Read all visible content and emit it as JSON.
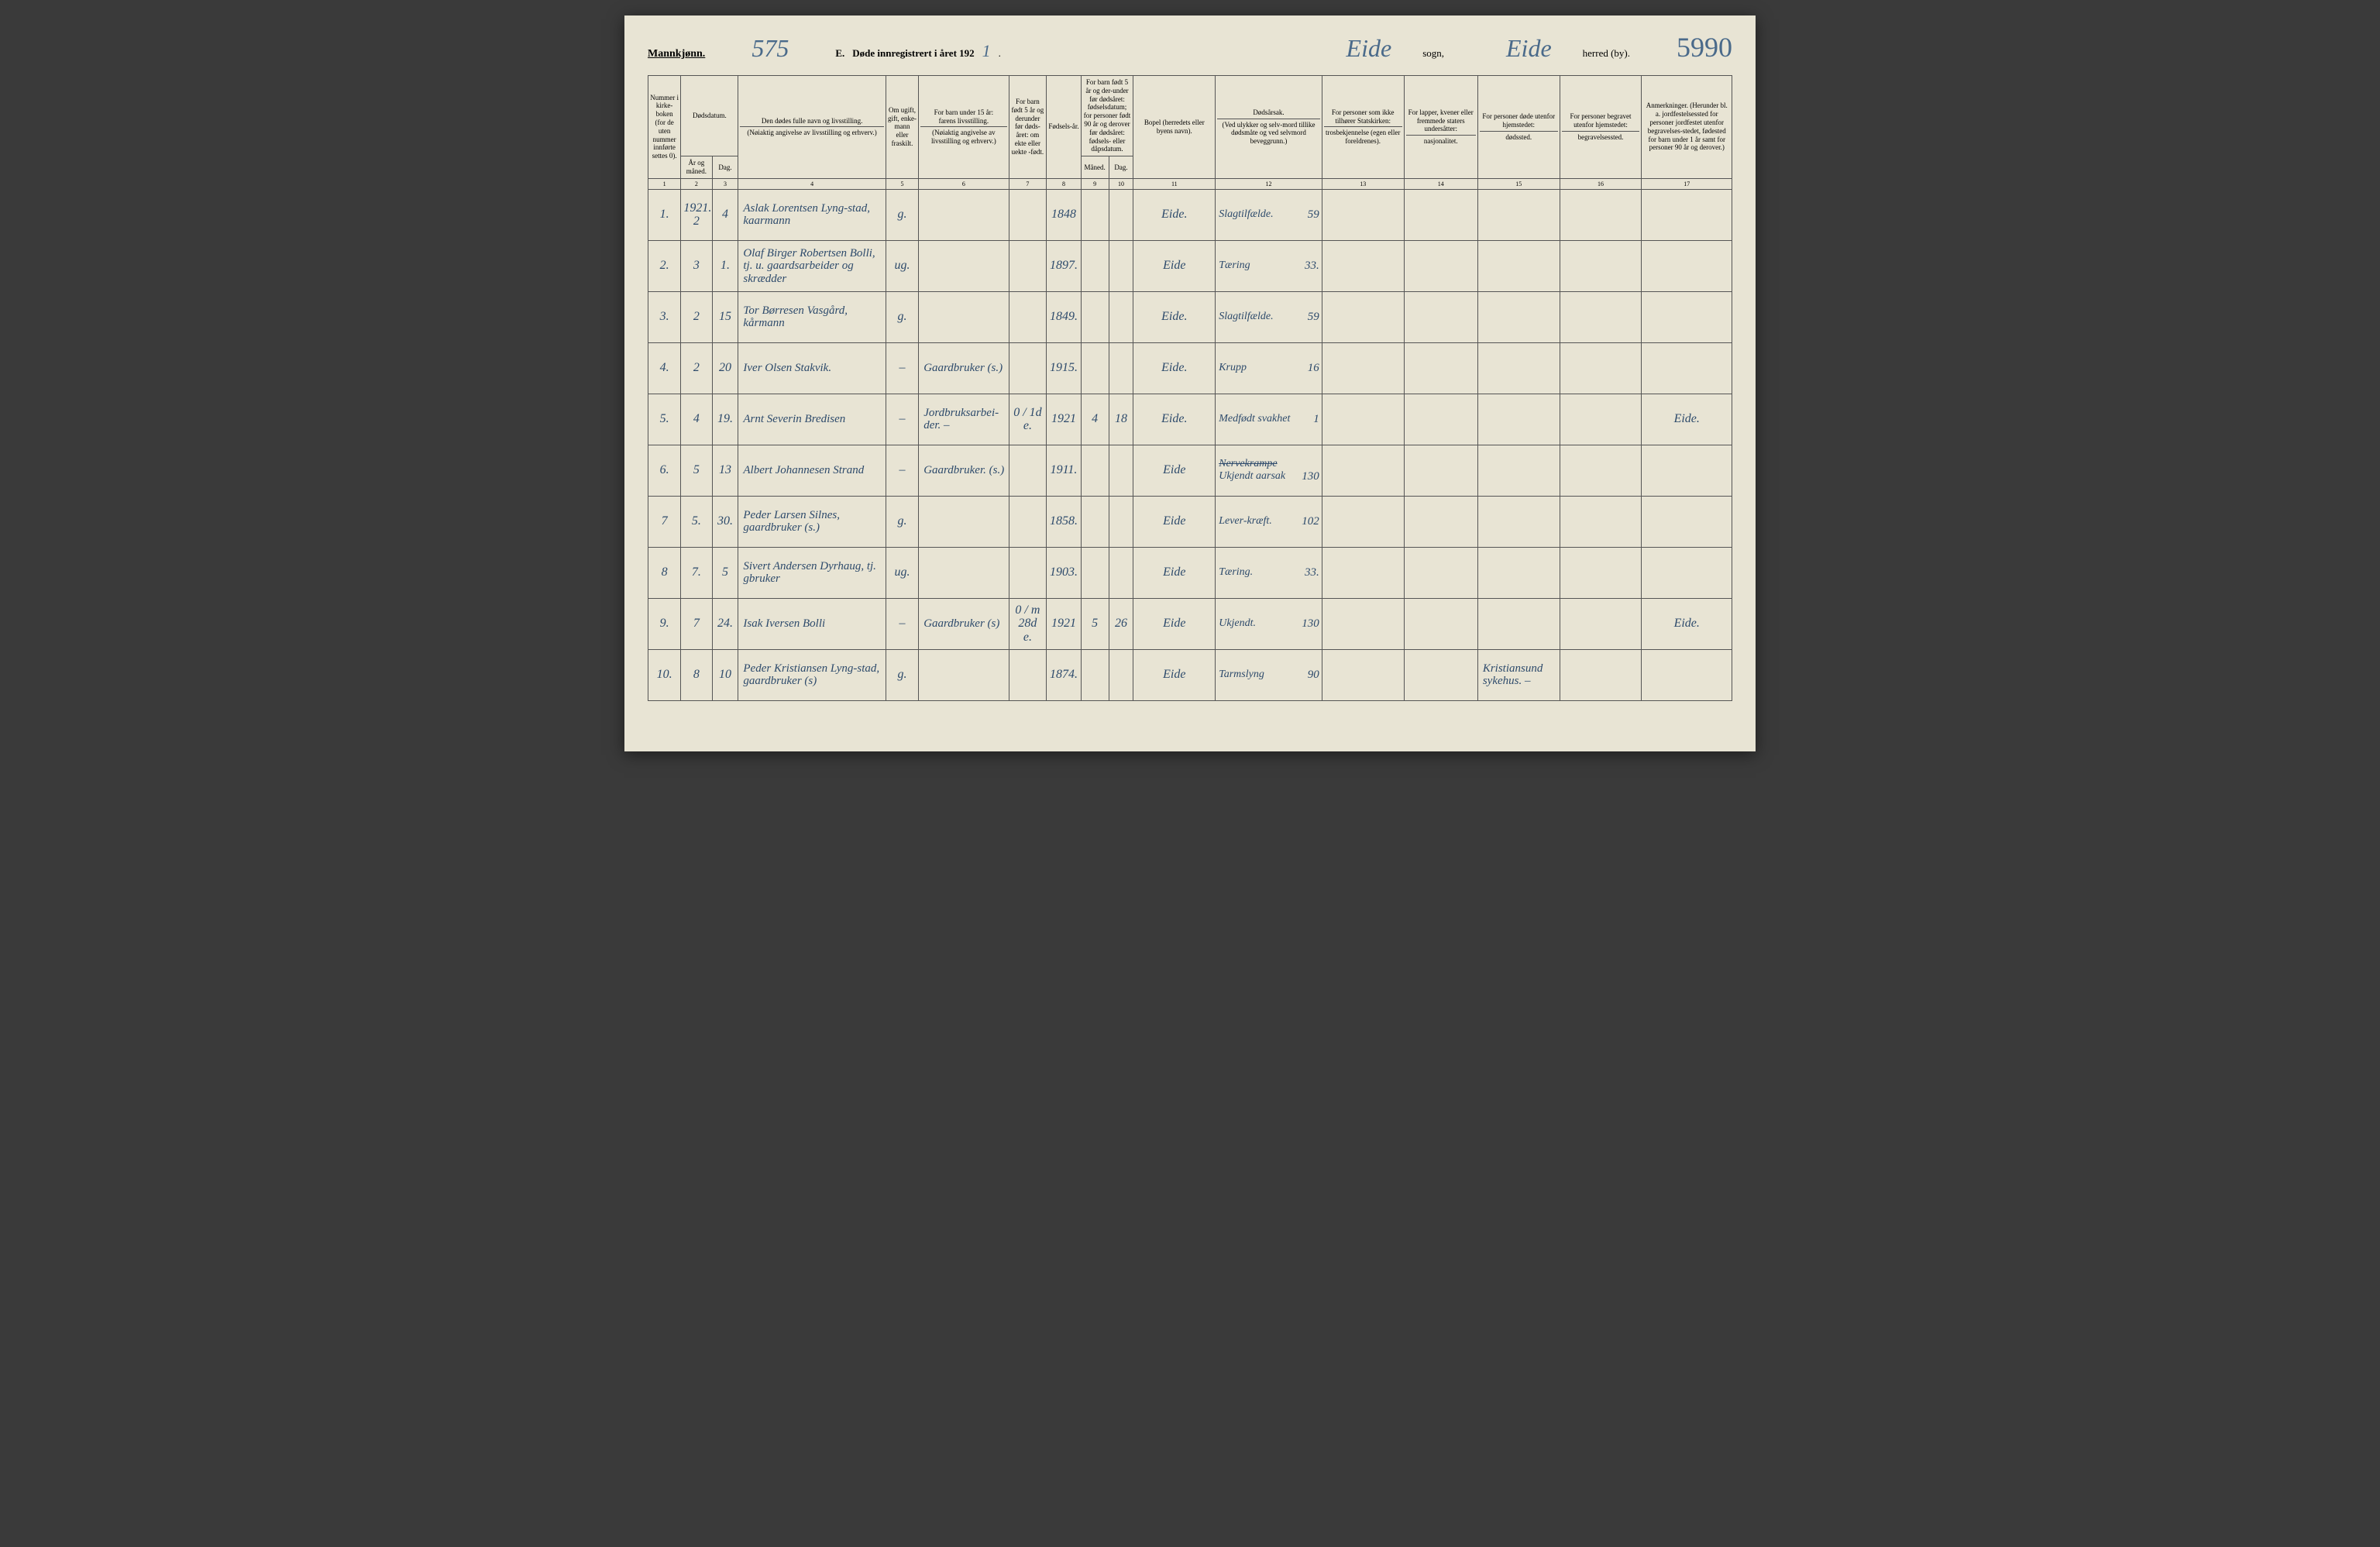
{
  "header": {
    "mannkjonn": "Mannkjønn.",
    "page_hand": "575",
    "section_letter": "E.",
    "title_printed": "Døde innregistrert i året 192",
    "year_hand": "1",
    "period": ".",
    "sogn_hand": "Eide",
    "sogn_label": "sogn,",
    "herred_hand": "Eide",
    "herred_label": "herred (by).",
    "right_hand": "5990"
  },
  "columns": {
    "c1": "Nummer i kirke-boken (for de uten nummer innførte settes 0).",
    "c2_3_top": "Dødsdatum.",
    "c2": "År og måned.",
    "c3": "Dag.",
    "c4_top": "Den dødes fulle navn og livsstilling.",
    "c4_sub": "(Nøiaktig angivelse av livsstilling og erhverv.)",
    "c5": "Om ugift, gift, enke-mann eller fraskilt.",
    "c6_top": "For barn under 15 år:",
    "c6_mid": "farens livsstilling.",
    "c6_sub": "(Nøiaktig angivelse av livsstilling og erhverv.)",
    "c7": "For barn født 5 år og derunder før døds-året: om ekte eller uekte -født.",
    "c8": "Fødsels-år.",
    "c9_10_top": "For barn født 5 år og der-under før dødsåret: fødselsdatum; for personer født 90 år og derover før dødsåret: fødsels- eller dåpsdatum.",
    "c9": "Måned.",
    "c10": "Dag.",
    "c11": "Bopel (herredets eller byens navn).",
    "c12_top": "Dødsårsak.",
    "c12_sub": "(Ved ulykker og selv-mord tillike dødsmåte og ved selvmord beveggrunn.)",
    "c13_top": "For personer som ikke tilhører Statskirken:",
    "c13_sub": "trosbekjennelse (egen eller foreldrenes).",
    "c14_top": "For lapper, kvener eller fremmede staters undersåtter:",
    "c14_sub": "nasjonalitet.",
    "c15_top": "For personer døde utenfor hjemstedet:",
    "c15_sub": "dødssted.",
    "c16_top": "For personer begravet utenfor hjemstedet:",
    "c16_sub": "begravelsessted.",
    "c17": "Anmerkninger. (Herunder bl. a. jordfestelsessted for personer jordfestet utenfor begravelses-stedet, fødested for barn under 1 år samt for personer 90 år og derover.)"
  },
  "colnums": [
    "1",
    "2",
    "3",
    "4",
    "5",
    "6",
    "7",
    "8",
    "9",
    "10",
    "11",
    "12",
    "13",
    "14",
    "15",
    "16",
    "17"
  ],
  "year_above": "1921.",
  "rows": [
    {
      "n": "1.",
      "mon": "2",
      "day": "4",
      "name": "Aslak Lorentsen Lyng-stad, kaarmann",
      "stat": "g.",
      "fath": "",
      "ekte": "",
      "birth": "1848",
      "bm": "",
      "bd": "",
      "bopel": "Eide.",
      "cause": "Slagtilfælde.",
      "cnum": "59",
      "c13": "",
      "c14": "",
      "c15": "",
      "c16": "",
      "c17": ""
    },
    {
      "n": "2.",
      "mon": "3",
      "day": "1.",
      "name": "Olaf Birger Robertsen Bolli, tj. u. gaardsarbeider og skrædder",
      "stat": "ug.",
      "fath": "",
      "ekte": "",
      "birth": "1897.",
      "bm": "",
      "bd": "",
      "bopel": "Eide",
      "cause": "Tæring",
      "cnum": "33.",
      "c13": "",
      "c14": "",
      "c15": "",
      "c16": "",
      "c17": ""
    },
    {
      "n": "3.",
      "mon": "2",
      "day": "15",
      "name": "Tor Børresen Vasgård, kårmann",
      "stat": "g.",
      "fath": "",
      "ekte": "",
      "birth": "1849.",
      "bm": "",
      "bd": "",
      "bopel": "Eide.",
      "cause": "Slagtilfælde.",
      "cnum": "59",
      "c13": "",
      "c14": "",
      "c15": "",
      "c16": "",
      "c17": ""
    },
    {
      "n": "4.",
      "mon": "2",
      "day": "20",
      "name": "Iver Olsen Stakvik.",
      "stat": "–",
      "fath": "Gaardbruker (s.)",
      "ekte": "",
      "birth": "1915.",
      "bm": "",
      "bd": "",
      "bopel": "Eide.",
      "cause": "Krupp",
      "cnum": "16",
      "c13": "",
      "c14": "",
      "c15": "",
      "c16": "",
      "c17": ""
    },
    {
      "n": "5.",
      "mon": "4",
      "day": "19.",
      "name": "Arnt Severin Bredisen",
      "stat": "–",
      "fath": "Jordbruksarbei-der. –",
      "ekte": "e.",
      "birth": "1921",
      "bm": "4",
      "bd": "18",
      "bopel": "Eide.",
      "cause": "Medfødt svakhet",
      "cnum": "1",
      "c13": "",
      "c14": "",
      "c15": "",
      "c16": "",
      "c17": "Eide.",
      "note": "0 / 1d"
    },
    {
      "n": "6.",
      "mon": "5",
      "day": "13",
      "name": "Albert Johannesen Strand",
      "stat": "–",
      "fath": "Gaardbruker. (s.)",
      "ekte": "",
      "birth": "1911.",
      "bm": "",
      "bd": "",
      "bopel": "Eide",
      "cause": "Ukjendt aarsak",
      "cnum": "130",
      "c13": "",
      "c14": "",
      "c15": "",
      "c16": "",
      "c17": "",
      "strike": "Nervekrampe"
    },
    {
      "n": "7",
      "mon": "5.",
      "day": "30.",
      "name": "Peder Larsen Silnes, gaardbruker (s.)",
      "stat": "g.",
      "fath": "",
      "ekte": "",
      "birth": "1858.",
      "bm": "",
      "bd": "",
      "bopel": "Eide",
      "cause": "Lever-kræft.",
      "cnum": "102",
      "c13": "",
      "c14": "",
      "c15": "",
      "c16": "",
      "c17": ""
    },
    {
      "n": "8",
      "mon": "7.",
      "day": "5",
      "name": "Sivert Andersen Dyrhaug, tj. gbruker",
      "stat": "ug.",
      "fath": "",
      "ekte": "",
      "birth": "1903.",
      "bm": "",
      "bd": "",
      "bopel": "Eide",
      "cause": "Tæring.",
      "cnum": "33.",
      "c13": "",
      "c14": "",
      "c15": "",
      "c16": "",
      "c17": ""
    },
    {
      "n": "9.",
      "mon": "7",
      "day": "24.",
      "name": "Isak Iversen Bolli",
      "stat": "–",
      "fath": "Gaardbruker (s)",
      "ekte": "e.",
      "birth": "1921",
      "bm": "5",
      "bd": "26",
      "bopel": "Eide",
      "cause": "Ukjendt.",
      "cnum": "130",
      "c13": "",
      "c14": "",
      "c15": "",
      "c16": "",
      "c17": "Eide.",
      "note": "0 / m 28d"
    },
    {
      "n": "10.",
      "mon": "8",
      "day": "10",
      "name": "Peder Kristiansen Lyng-stad, gaardbruker (s)",
      "stat": "g.",
      "fath": "",
      "ekte": "",
      "birth": "1874.",
      "bm": "",
      "bd": "",
      "bopel": "Eide",
      "cause": "Tarmslyng",
      "cnum": "90",
      "c13": "",
      "c14": "",
      "c15": "Kristiansund sykehus. –",
      "c16": "",
      "c17": ""
    }
  ],
  "style": {
    "page_bg": "#e8e4d4",
    "border_color": "#555555",
    "hand_color": "#2d4a6b",
    "printed_color": "#222222"
  },
  "widths": {
    "c1": 40,
    "c2": 38,
    "c3": 32,
    "c4": 180,
    "c5": 40,
    "c6": 110,
    "c7": 46,
    "c8": 42,
    "c9": 34,
    "c10": 30,
    "c11": 100,
    "c12": 130,
    "c13": 100,
    "c14": 90,
    "c15": 100,
    "c16": 100,
    "c17": 110
  }
}
